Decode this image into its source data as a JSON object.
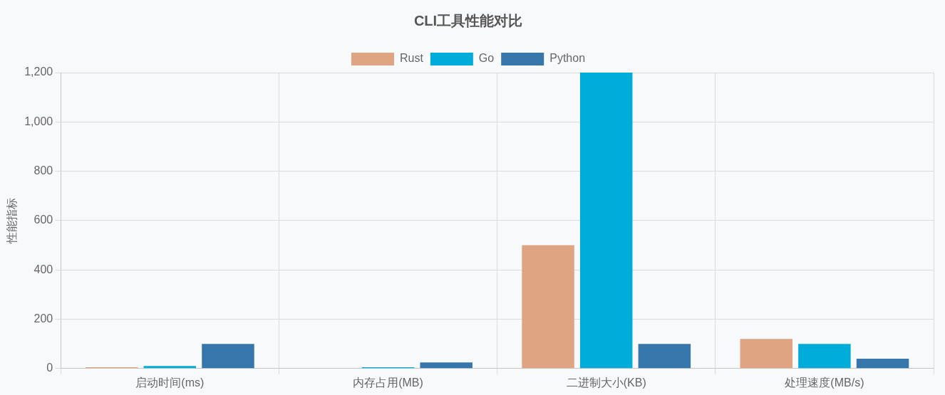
{
  "chart_data": {
    "type": "bar",
    "title": "CLI工具性能对比",
    "ylabel": "性能指标",
    "categories": [
      "启动时间(ms)",
      "内存占用(MB)",
      "二进制大小(KB)",
      "处理速度(MB/s)"
    ],
    "series": [
      {
        "name": "Rust",
        "color": "#dfa583",
        "values": [
          5,
          null,
          500,
          120
        ]
      },
      {
        "name": "Go",
        "color": "#00acd9",
        "values": [
          10,
          5,
          1200,
          100
        ]
      },
      {
        "name": "Python",
        "color": "#3776ab",
        "values": [
          100,
          25,
          100,
          40
        ]
      }
    ],
    "ylim": [
      0,
      1200
    ],
    "yticks": [
      {
        "value": 0,
        "label": "0"
      },
      {
        "value": 200,
        "label": "200"
      },
      {
        "value": 400,
        "label": "400"
      },
      {
        "value": 600,
        "label": "600"
      },
      {
        "value": 800,
        "label": "800"
      },
      {
        "value": 1000,
        "label": "1,000"
      },
      {
        "value": 1200,
        "label": "1,200"
      }
    ],
    "grid": true,
    "legend": "top"
  }
}
